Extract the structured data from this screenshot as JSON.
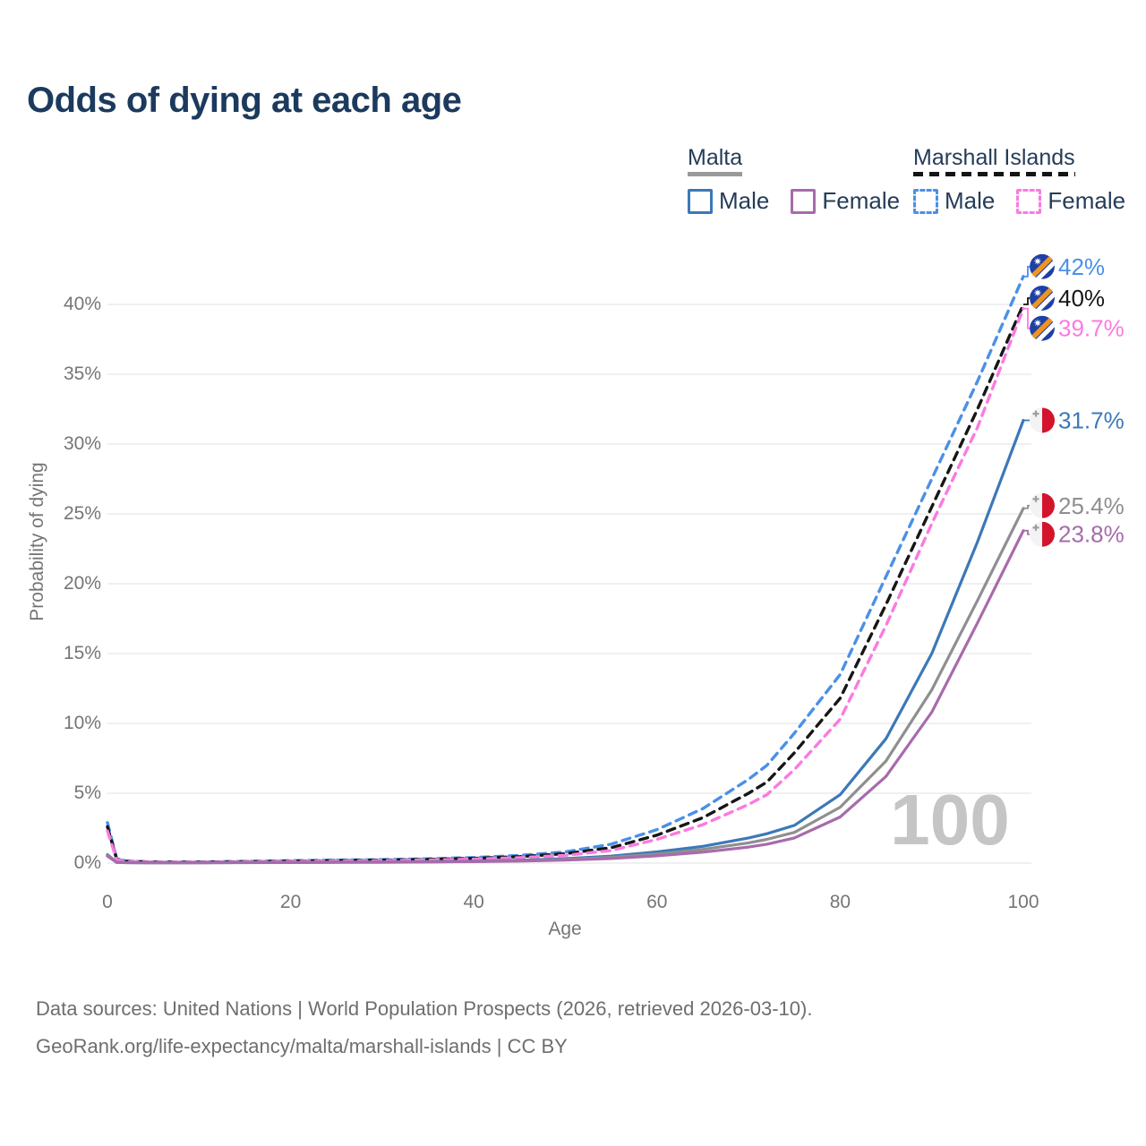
{
  "header": {
    "title": "Odds of dying at each age"
  },
  "legend": {
    "groups": [
      {
        "label": "Malta",
        "underline_color": "#9a9a9a",
        "underline_style": "solid",
        "items": [
          {
            "label": "Male",
            "color": "#3c78b8",
            "style": "solid"
          },
          {
            "label": "Female",
            "color": "#a76bab",
            "style": "solid"
          }
        ]
      },
      {
        "label": "Marshall Islands",
        "underline_color": "#141414",
        "underline_style": "dashed",
        "items": [
          {
            "label": "Male",
            "color": "#4a90e8",
            "style": "dashed"
          },
          {
            "label": "Female",
            "color": "#fb7ae0",
            "style": "dashed"
          }
        ]
      }
    ]
  },
  "chart_data": {
    "type": "line",
    "title": "Odds of dying at each age",
    "xlabel": "Age",
    "ylabel": "Probability of dying",
    "xlim": [
      0,
      100
    ],
    "ylim": [
      0,
      43.5
    ],
    "grid": true,
    "legend_position": "top-right",
    "watermark": "100",
    "watermark_color": "#c5c5c5",
    "grid_color": "#ebebeb",
    "x_ticks": [
      {
        "value": 0,
        "label": "0"
      },
      {
        "value": 20,
        "label": "20"
      },
      {
        "value": 40,
        "label": "40"
      },
      {
        "value": 60,
        "label": "60"
      },
      {
        "value": 80,
        "label": "80"
      },
      {
        "value": 100,
        "label": "100"
      }
    ],
    "y_ticks": [
      {
        "value": 0,
        "label": "0%"
      },
      {
        "value": 5,
        "label": "5%"
      },
      {
        "value": 10,
        "label": "10%"
      },
      {
        "value": 15,
        "label": "15%"
      },
      {
        "value": 20,
        "label": "20%"
      },
      {
        "value": 25,
        "label": "25%"
      },
      {
        "value": 30,
        "label": "30%"
      },
      {
        "value": 35,
        "label": "35%"
      },
      {
        "value": 40,
        "label": "40%"
      }
    ],
    "ages": [
      0,
      1,
      2,
      5,
      10,
      15,
      20,
      25,
      30,
      35,
      40,
      45,
      50,
      55,
      60,
      65,
      70,
      72,
      75,
      80,
      85,
      90,
      95,
      100
    ],
    "series": [
      {
        "name": "Marshall Islands Male",
        "country": "Marshall Islands",
        "sex": "Male",
        "color": "#4a90e8",
        "line_style": "dashed",
        "flag": "marshall-islands",
        "end_label": "42%",
        "values": [
          2.9,
          0.35,
          0.15,
          0.08,
          0.08,
          0.12,
          0.17,
          0.21,
          0.25,
          0.31,
          0.4,
          0.55,
          0.8,
          1.35,
          2.4,
          3.9,
          6.0,
          7.0,
          9.3,
          13.5,
          20.5,
          27.5,
          34.5,
          42.0
        ]
      },
      {
        "name": "Marshall Islands",
        "country": "Marshall Islands",
        "sex": "Both",
        "color": "#161616",
        "line_style": "dashed",
        "flag": "marshall-islands",
        "end_label": "40%",
        "values": [
          2.6,
          0.3,
          0.13,
          0.07,
          0.07,
          0.1,
          0.14,
          0.18,
          0.21,
          0.26,
          0.34,
          0.46,
          0.67,
          1.1,
          2.0,
          3.25,
          5.0,
          5.8,
          7.9,
          11.8,
          18.5,
          25.5,
          32.5,
          40.0
        ]
      },
      {
        "name": "Marshall Islands Female",
        "country": "Marshall Islands",
        "sex": "Female",
        "color": "#fb7ae0",
        "line_style": "dashed",
        "flag": "marshall-islands",
        "end_label": "39.7%",
        "values": [
          2.3,
          0.26,
          0.11,
          0.06,
          0.06,
          0.09,
          0.12,
          0.15,
          0.18,
          0.22,
          0.28,
          0.39,
          0.56,
          0.9,
          1.7,
          2.75,
          4.2,
          4.9,
          6.7,
          10.3,
          17.0,
          24.3,
          31.2,
          39.7
        ]
      },
      {
        "name": "Malta Male",
        "country": "Malta",
        "sex": "Male",
        "color": "#3c78b8",
        "line_style": "solid",
        "flag": "malta",
        "end_label": "31.7%",
        "values": [
          0.6,
          0.06,
          0.04,
          0.02,
          0.03,
          0.05,
          0.06,
          0.07,
          0.08,
          0.1,
          0.14,
          0.2,
          0.32,
          0.5,
          0.8,
          1.2,
          1.8,
          2.1,
          2.7,
          4.9,
          8.9,
          15.0,
          23.0,
          31.7
        ]
      },
      {
        "name": "Malta",
        "country": "Malta",
        "sex": "Both",
        "color": "#8f8f8f",
        "line_style": "solid",
        "flag": "malta",
        "end_label": "25.4%",
        "values": [
          0.55,
          0.05,
          0.03,
          0.02,
          0.02,
          0.04,
          0.05,
          0.06,
          0.07,
          0.09,
          0.12,
          0.17,
          0.26,
          0.41,
          0.65,
          0.98,
          1.45,
          1.7,
          2.2,
          4.0,
          7.3,
          12.4,
          18.8,
          25.4
        ]
      },
      {
        "name": "Malta Female",
        "country": "Malta",
        "sex": "Female",
        "color": "#a76bab",
        "line_style": "solid",
        "flag": "malta",
        "end_label": "23.8%",
        "values": [
          0.5,
          0.05,
          0.03,
          0.02,
          0.02,
          0.03,
          0.04,
          0.05,
          0.06,
          0.08,
          0.1,
          0.14,
          0.21,
          0.33,
          0.52,
          0.78,
          1.15,
          1.35,
          1.8,
          3.3,
          6.2,
          10.8,
          17.2,
          23.8
        ]
      }
    ]
  },
  "footer": {
    "line1": "Data sources: United Nations | World Population Prospects (2026, retrieved 2026-03-10).",
    "line2": "GeoRank.org/life-expectancy/malta/marshall-islands | CC BY"
  }
}
